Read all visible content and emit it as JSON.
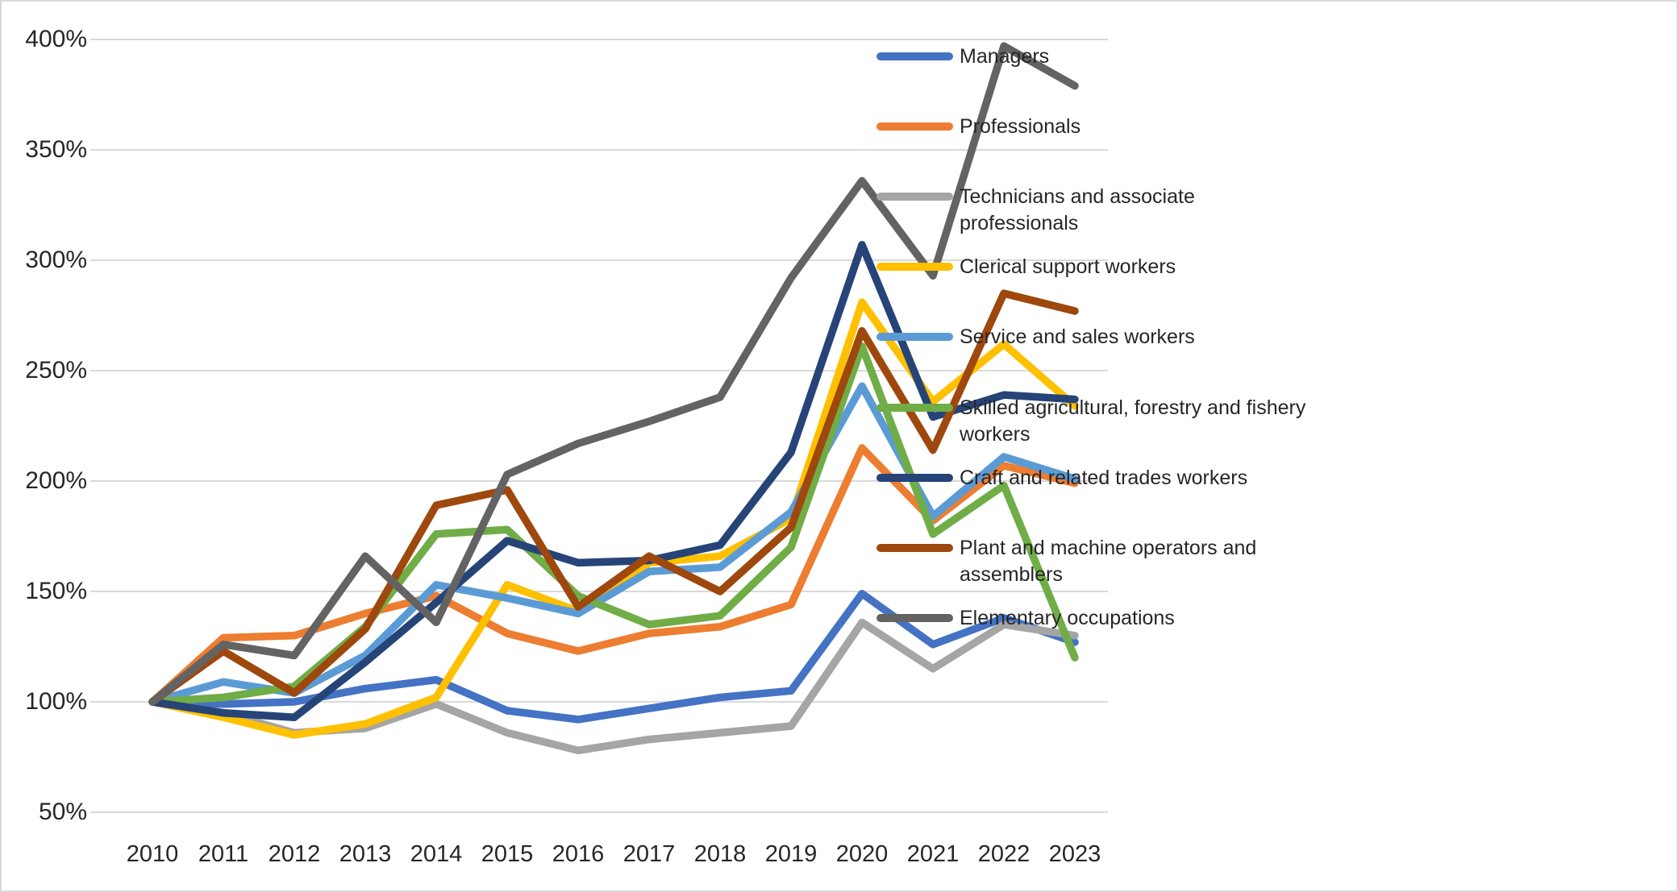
{
  "chart_data": {
    "type": "line",
    "title": "",
    "xlabel": "",
    "ylabel": "",
    "x": [
      "2010",
      "2011",
      "2012",
      "2013",
      "2014",
      "2015",
      "2016",
      "2017",
      "2018",
      "2019",
      "2020",
      "2021",
      "2022",
      "2023"
    ],
    "yticks": [
      "400%",
      "350%",
      "300%",
      "250%",
      "200%",
      "150%",
      "100%",
      "50%"
    ],
    "ytick_values": [
      400,
      350,
      300,
      250,
      200,
      150,
      100,
      50
    ],
    "ylim": [
      50,
      400
    ],
    "grid": true,
    "gridline_color": "#d9d9d9",
    "legend_position": "right",
    "series": [
      {
        "name": "Managers",
        "color": "#4472C4",
        "values": [
          100,
          99,
          100,
          106,
          110,
          96,
          92,
          97,
          102,
          105,
          149,
          126,
          138,
          127
        ]
      },
      {
        "name": "Professionals",
        "color": "#ED7D31",
        "values": [
          100,
          129,
          130,
          140,
          148,
          131,
          123,
          131,
          134,
          144,
          215,
          182,
          207,
          199
        ]
      },
      {
        "name": "Technicians and associate professionals",
        "color": "#A5A5A5",
        "values": [
          100,
          95,
          86,
          88,
          99,
          86,
          78,
          83,
          86,
          89,
          136,
          115,
          135,
          130
        ]
      },
      {
        "name": "Clerical support workers",
        "color": "#FFC000",
        "values": [
          100,
          93,
          85,
          90,
          102,
          153,
          141,
          163,
          166,
          183,
          281,
          236,
          262,
          234
        ]
      },
      {
        "name": "Service and sales workers",
        "color": "#5B9BD5",
        "values": [
          100,
          109,
          104,
          121,
          153,
          147,
          140,
          159,
          161,
          186,
          243,
          184,
          211,
          201
        ]
      },
      {
        "name": "Skilled agricultural, forestry and fishery workers",
        "color": "#70AD47",
        "values": [
          100,
          102,
          107,
          134,
          176,
          178,
          148,
          135,
          139,
          170,
          261,
          176,
          198,
          120
        ]
      },
      {
        "name": "Craft and related trades workers",
        "color": "#264478",
        "values": [
          100,
          95,
          93,
          118,
          145,
          173,
          163,
          164,
          171,
          213,
          307,
          229,
          239,
          237
        ]
      },
      {
        "name": "Plant and machine operators and assemblers",
        "color": "#9E480E",
        "values": [
          100,
          123,
          104,
          133,
          189,
          196,
          143,
          166,
          150,
          179,
          268,
          214,
          285,
          277
        ]
      },
      {
        "name": "Elementary occupations",
        "color": "#636363",
        "values": [
          100,
          126,
          121,
          166,
          136,
          203,
          217,
          227,
          238,
          292,
          336,
          293,
          397,
          379
        ]
      }
    ]
  }
}
